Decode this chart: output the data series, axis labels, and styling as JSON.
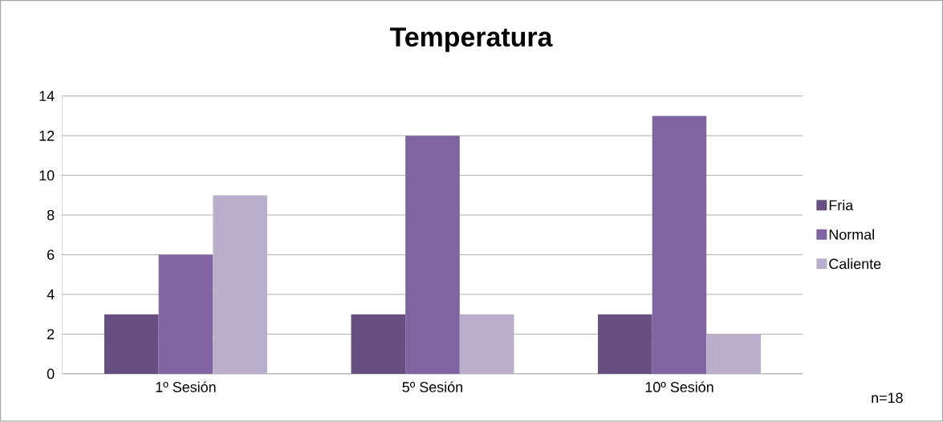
{
  "chart_data": {
    "type": "bar",
    "title": "Temperatura",
    "categories": [
      "1º Sesión",
      "5º Sesión",
      "10º Sesión"
    ],
    "series": [
      {
        "name": "Fria",
        "color": "#684f82",
        "values": [
          3,
          3,
          3
        ]
      },
      {
        "name": "Normal",
        "color": "#8064a2",
        "values": [
          6,
          12,
          13
        ]
      },
      {
        "name": "Caliente",
        "color": "#b9aecb",
        "values": [
          9,
          3,
          2
        ]
      }
    ],
    "ylim": [
      0,
      14
    ],
    "yticks": [
      0,
      2,
      4,
      6,
      8,
      10,
      12,
      14
    ],
    "grid": "y",
    "legend": "right",
    "annotations": [
      "n=18"
    ]
  }
}
